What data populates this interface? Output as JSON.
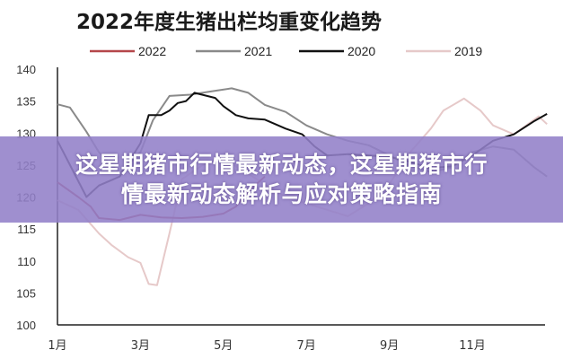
{
  "chart_data": {
    "type": "line",
    "title": "2022年度生猪出栏均重变化趋势",
    "xlabel": "",
    "ylabel": "",
    "xlim": [
      1,
      12.8
    ],
    "ylim": [
      100,
      140
    ],
    "yticks": [
      100,
      105,
      110,
      115,
      120,
      125,
      130,
      135,
      140
    ],
    "xticks": [
      {
        "value": 1,
        "label": "1月"
      },
      {
        "value": 3,
        "label": "3月"
      },
      {
        "value": 5,
        "label": "5月"
      },
      {
        "value": 7,
        "label": "7月"
      },
      {
        "value": 9,
        "label": "9月"
      },
      {
        "value": 11,
        "label": "11月"
      }
    ],
    "grid": false,
    "legend_position": "top",
    "series": [
      {
        "name": "2022",
        "color": "#b5474a",
        "x": [
          1,
          1.5,
          1.8,
          2,
          2.5,
          3,
          3.5,
          4,
          4.5,
          5,
          5.3,
          5.6,
          6
        ],
        "y": [
          122.3,
          120,
          118.5,
          116.7,
          116.4,
          117.2,
          116.8,
          116.7,
          116.9,
          117.4,
          118.5,
          120.9,
          123.2
        ]
      },
      {
        "name": "2021",
        "color": "#8a8a8a",
        "x": [
          1,
          1.3,
          1.7,
          2,
          2.5,
          3,
          3.3,
          3.7,
          4.2,
          4.7,
          5.2,
          5.6,
          6,
          6.5,
          7,
          7.5,
          8,
          8.5,
          9,
          9.5,
          10,
          10.5,
          11,
          11.5,
          12,
          12.5,
          12.8
        ],
        "y": [
          134.5,
          134,
          130.2,
          127,
          123.7,
          127,
          132,
          135.8,
          136,
          136.5,
          137,
          136.3,
          134.4,
          133.3,
          131.2,
          129.8,
          128.8,
          128.1,
          126.5,
          124.9,
          123.9,
          124.6,
          127,
          127.9,
          127.4,
          124.6,
          123.2
        ]
      },
      {
        "name": "2020",
        "color": "#111111",
        "x": [
          1,
          1.7,
          2,
          2.5,
          3,
          3.2,
          3.5,
          3.7,
          3.9,
          4.1,
          4.3,
          4.8,
          5,
          5.3,
          5.6,
          6,
          6.5,
          6.9,
          7.2,
          7.5,
          8,
          8.5,
          9,
          9.5,
          10,
          10.5,
          11,
          11.5,
          12,
          12.5,
          12.8
        ],
        "y": [
          128.8,
          120,
          121.8,
          123.2,
          128.4,
          132.8,
          132.8,
          133.5,
          134.7,
          135,
          136.3,
          135.5,
          134.2,
          132.8,
          132.3,
          132.1,
          130.7,
          129.8,
          127.9,
          126.5,
          126.7,
          126.5,
          126.3,
          125.5,
          124.5,
          124.8,
          126.5,
          128.8,
          129.8,
          131.9,
          133
        ]
      },
      {
        "name": "2019",
        "color": "#e6c9c9",
        "x": [
          1,
          1.5,
          2,
          2.3,
          2.7,
          3,
          3.2,
          3.4,
          3.7,
          4,
          4.5,
          5,
          5.5,
          6,
          6.5,
          7,
          7.5,
          8,
          8.5,
          9,
          9.5,
          10,
          10.3,
          10.8,
          11.2,
          11.5,
          12,
          12.3,
          12.6,
          12.8
        ],
        "y": [
          119.5,
          118,
          114.3,
          112.5,
          110.6,
          109.7,
          106.4,
          106.2,
          114.3,
          122.8,
          125,
          126,
          124,
          122,
          120,
          119,
          118,
          117,
          119,
          122,
          127,
          130.7,
          133.5,
          135.4,
          133.5,
          131.2,
          129.8,
          131.2,
          132.6,
          131.4
        ]
      }
    ]
  },
  "banner": {
    "line1": "这星期猪市行情最新动态，这星期猪市行",
    "line2": "情最新动态解析与应对策略指南"
  }
}
